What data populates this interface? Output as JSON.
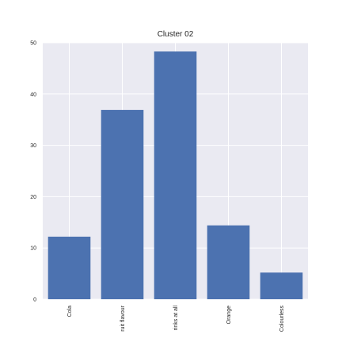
{
  "chart_data": {
    "type": "bar",
    "title": "Cluster 02",
    "xlabel": "",
    "ylabel": "",
    "categories": [
      "Cola",
      "ruit flavour",
      "rinks at all",
      "Orange",
      "Colourless"
    ],
    "values": [
      12.2,
      36.9,
      48.3,
      14.4,
      5.2
    ],
    "ylim": [
      0,
      50
    ],
    "yticks": [
      "0",
      "10",
      "20",
      "30",
      "40",
      "50"
    ],
    "grid": true,
    "legend": "none",
    "colors": {
      "bar": "#4c72b0",
      "plot_background": "#eaeaf2",
      "grid": "#ffffff",
      "text": "#262626"
    }
  }
}
